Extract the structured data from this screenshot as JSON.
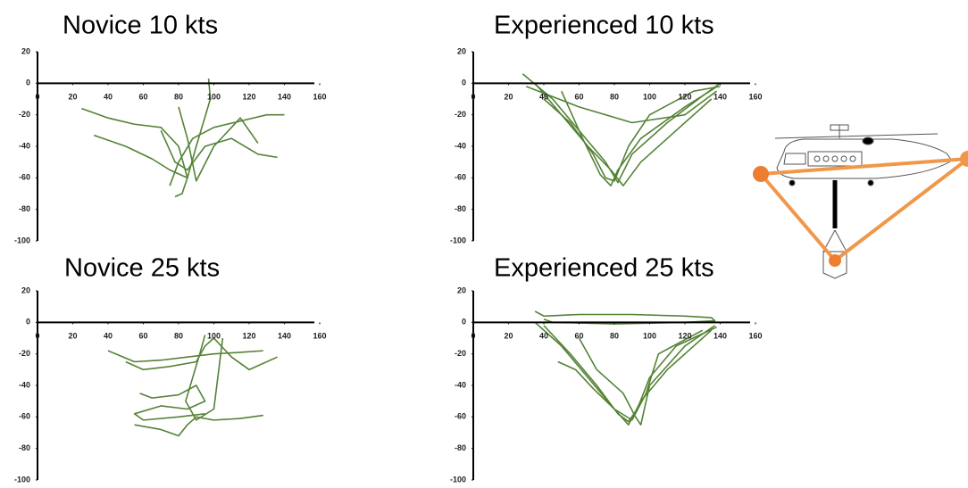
{
  "chart_data": [
    {
      "type": "line",
      "title": "Novice 10 kts",
      "color": "#548235",
      "xlim": [
        0,
        160
      ],
      "ylim": [
        -100,
        20
      ],
      "xticks": [
        0,
        20,
        40,
        60,
        80,
        100,
        120,
        140,
        160
      ],
      "yticks": [
        -100,
        -80,
        -60,
        -40,
        -20,
        0,
        20
      ],
      "series": [
        {
          "x": [
            25,
            40,
            55,
            70,
            80,
            85,
            82,
            78
          ],
          "values": [
            -16,
            -22,
            -26,
            -28,
            -40,
            -60,
            -70,
            -72
          ]
        },
        {
          "x": [
            32,
            50,
            65,
            75,
            85,
            90,
            98,
            97
          ],
          "values": [
            -33,
            -40,
            -48,
            -55,
            -60,
            -40,
            -10,
            3
          ]
        },
        {
          "x": [
            75,
            80,
            88,
            100,
            115,
            130,
            140
          ],
          "values": [
            -65,
            -50,
            -35,
            -28,
            -24,
            -20,
            -20
          ]
        },
        {
          "x": [
            70,
            78,
            85,
            95,
            110,
            125,
            136
          ],
          "values": [
            -30,
            -50,
            -55,
            -40,
            -35,
            -45,
            -47
          ]
        },
        {
          "x": [
            80,
            85,
            90,
            100,
            115,
            120,
            125
          ],
          "values": [
            -15,
            -35,
            -62,
            -40,
            -22,
            -30,
            -38
          ]
        }
      ]
    },
    {
      "type": "line",
      "title": "Experienced 10 kts",
      "color": "#548235",
      "xlim": [
        0,
        160
      ],
      "ylim": [
        -100,
        20
      ],
      "xticks": [
        0,
        20,
        40,
        60,
        80,
        100,
        120,
        140,
        160
      ],
      "yticks": [
        -100,
        -80,
        -60,
        -40,
        -20,
        0,
        20
      ],
      "series": [
        {
          "x": [
            28,
            45,
            60,
            75,
            82,
            90,
            110,
            130,
            140
          ],
          "values": [
            6,
            -10,
            -30,
            -50,
            -63,
            -45,
            -25,
            -8,
            0
          ]
        },
        {
          "x": [
            35,
            50,
            65,
            78,
            85,
            95,
            115,
            135
          ],
          "values": [
            0,
            -20,
            -40,
            -55,
            -65,
            -50,
            -30,
            -10
          ]
        },
        {
          "x": [
            40,
            55,
            68,
            75,
            80,
            88,
            100,
            125,
            140
          ],
          "values": [
            -10,
            -25,
            -45,
            -60,
            -62,
            -40,
            -20,
            -5,
            -2
          ]
        },
        {
          "x": [
            30,
            60,
            90,
            120,
            138
          ],
          "values": [
            -2,
            -15,
            -25,
            -20,
            -5
          ]
        },
        {
          "x": [
            50,
            62,
            72,
            78,
            82,
            95,
            120,
            137
          ],
          "values": [
            -5,
            -35,
            -58,
            -65,
            -55,
            -35,
            -15,
            -3
          ]
        }
      ]
    },
    {
      "type": "line",
      "title": "Novice 25 kts",
      "color": "#548235",
      "xlim": [
        0,
        160
      ],
      "ylim": [
        -100,
        20
      ],
      "xticks": [
        0,
        20,
        40,
        60,
        80,
        100,
        120,
        140,
        160
      ],
      "yticks": [
        -100,
        -80,
        -60,
        -40,
        -20,
        0,
        20
      ],
      "series": [
        {
          "x": [
            40,
            55,
            70,
            85,
            100,
            115,
            128
          ],
          "values": [
            -18,
            -25,
            -24,
            -22,
            -20,
            -19,
            -18
          ]
        },
        {
          "x": [
            50,
            60,
            75,
            90,
            95,
            100,
            110,
            120,
            136
          ],
          "values": [
            -25,
            -30,
            -28,
            -25,
            -15,
            -10,
            -22,
            -30,
            -22
          ]
        },
        {
          "x": [
            58,
            65,
            80,
            90,
            95,
            85,
            70,
            55,
            60,
            80,
            95
          ],
          "values": [
            -45,
            -48,
            -46,
            -40,
            -50,
            -55,
            -53,
            -58,
            -62,
            -60,
            -58
          ]
        },
        {
          "x": [
            55,
            70,
            80,
            85,
            90,
            100,
            115,
            128
          ],
          "values": [
            -65,
            -68,
            -72,
            -65,
            -60,
            -62,
            -61,
            -59
          ]
        },
        {
          "x": [
            95,
            92,
            88,
            84,
            90,
            100,
            105
          ],
          "values": [
            -8,
            -20,
            -35,
            -50,
            -62,
            -55,
            -10
          ]
        }
      ]
    },
    {
      "type": "line",
      "title": "Experienced 25 kts",
      "color": "#548235",
      "xlim": [
        0,
        160
      ],
      "ylim": [
        -100,
        20
      ],
      "xticks": [
        0,
        20,
        40,
        60,
        80,
        100,
        120,
        140,
        160
      ],
      "yticks": [
        -100,
        -80,
        -60,
        -40,
        -20,
        0,
        20
      ],
      "series": [
        {
          "x": [
            35,
            40,
            60,
            90,
            120,
            135,
            137,
            120,
            80,
            45,
            40
          ],
          "values": [
            7,
            4,
            5,
            5,
            4,
            3,
            1,
            0,
            -1,
            0,
            2
          ]
        },
        {
          "x": [
            35,
            50,
            65,
            80,
            88,
            95,
            110,
            125,
            135
          ],
          "values": [
            0,
            -15,
            -35,
            -55,
            -65,
            -50,
            -30,
            -15,
            -5
          ]
        },
        {
          "x": [
            40,
            55,
            70,
            82,
            88,
            93,
            100,
            115,
            138
          ],
          "values": [
            -2,
            -20,
            -40,
            -58,
            -63,
            -55,
            -35,
            -15,
            -3
          ]
        },
        {
          "x": [
            48,
            58,
            68,
            80,
            90,
            98,
            105,
            130
          ],
          "values": [
            -25,
            -30,
            -42,
            -55,
            -62,
            -45,
            -20,
            -5
          ]
        },
        {
          "x": [
            60,
            70,
            85,
            92,
            95,
            100,
            120,
            137
          ],
          "values": [
            -10,
            -30,
            -45,
            -60,
            -65,
            -40,
            -15,
            -2
          ]
        }
      ]
    }
  ]
}
